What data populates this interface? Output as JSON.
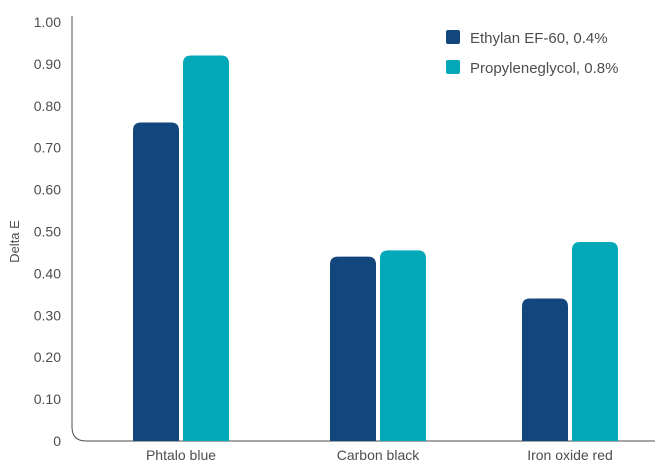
{
  "chart_data": {
    "type": "bar",
    "title": "",
    "xlabel": "",
    "ylabel": "Delta E",
    "ylim": [
      0,
      1.0
    ],
    "yticks": [
      0,
      0.1,
      0.2,
      0.3,
      0.4,
      0.5,
      0.6,
      0.7,
      0.8,
      0.9,
      1.0
    ],
    "ytick_labels": [
      "0",
      "0.10",
      "0.20",
      "0.30",
      "0.40",
      "0.50",
      "0.60",
      "0.70",
      "0.80",
      "0.90",
      "1.00"
    ],
    "categories": [
      "Phtalo blue",
      "Carbon black",
      "Iron oxide red"
    ],
    "series": [
      {
        "name": "Ethylan EF-60, 0.4%",
        "color": "#12467d",
        "values": [
          0.76,
          0.44,
          0.34
        ]
      },
      {
        "name": "Propyleneglycol, 0.8%",
        "color": "#03a8b9",
        "values": [
          0.92,
          0.455,
          0.475
        ]
      }
    ],
    "grid": false,
    "legend_position": "top-right"
  }
}
